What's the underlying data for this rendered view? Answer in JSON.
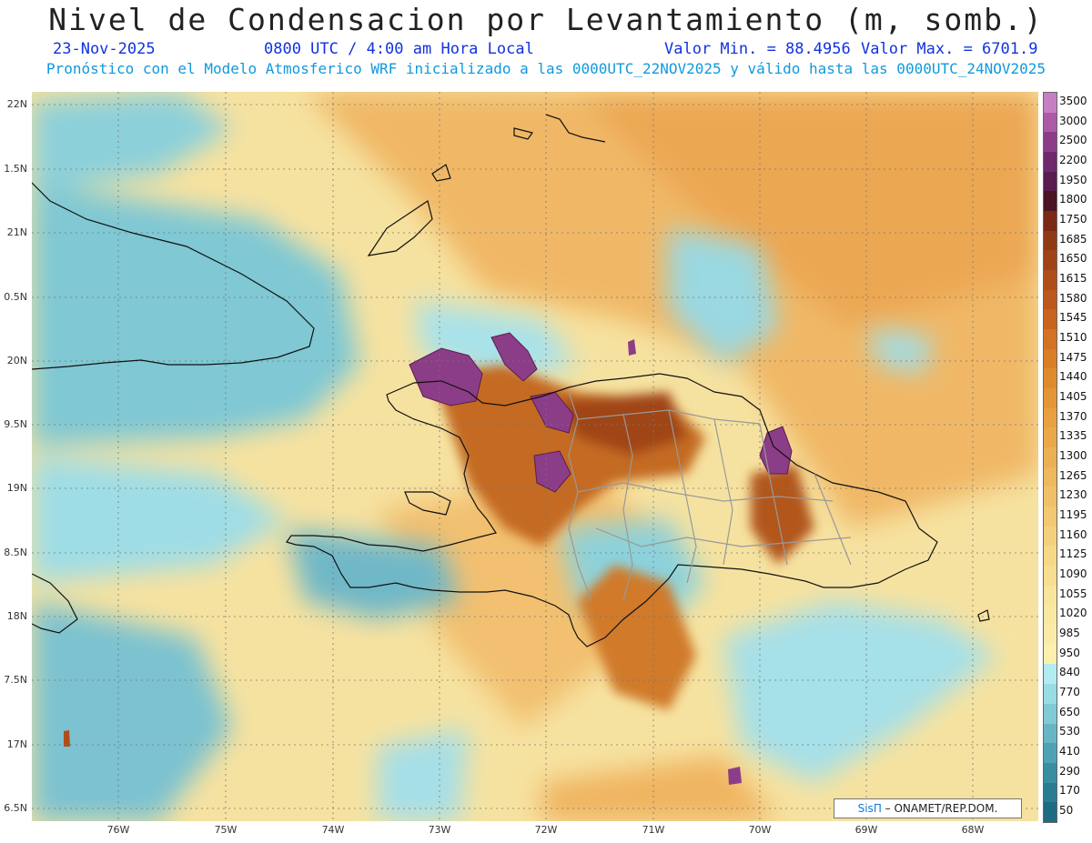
{
  "header": {
    "title": "Nivel de Condensacion por Levantamiento (m, somb.)",
    "date": "23-Nov-2025",
    "time": "0800 UTC / 4:00 am Hora Local",
    "min_value": "Valor Min. = 88.4956",
    "max_value": "Valor Max. = 6701.9",
    "model_info": "Pronóstico con el Modelo Atmosferico WRF inicializado a las 0000UTC_22NOV2025 y válido hasta las  0000UTC_24NOV2025"
  },
  "axes": {
    "lat_labels": [
      "22N",
      "1.5N",
      "21N",
      "0.5N",
      "20N",
      "9.5N",
      "19N",
      "8.5N",
      "18N",
      "7.5N",
      "17N",
      "6.5N"
    ],
    "lon_labels": [
      "76W",
      "75W",
      "74W",
      "73W",
      "72W",
      "71W",
      "70W",
      "69W",
      "68W"
    ]
  },
  "colorbar": {
    "labels": [
      "3500",
      "3000",
      "2500",
      "2200",
      "1950",
      "1800",
      "1750",
      "1685",
      "1650",
      "1615",
      "1580",
      "1545",
      "1510",
      "1475",
      "1440",
      "1405",
      "1370",
      "1335",
      "1300",
      "1265",
      "1230",
      "1195",
      "1160",
      "1125",
      "1090",
      "1055",
      "1020",
      "985",
      "950",
      "840",
      "770",
      "650",
      "530",
      "410",
      "290",
      "170",
      "50"
    ],
    "colors": [
      "#c77fc4",
      "#ad5aa6",
      "#8c3d87",
      "#6e2a6a",
      "#5a1d4f",
      "#4a1424",
      "#7a2a14",
      "#8f3a14",
      "#a04418",
      "#b04e1a",
      "#bc581c",
      "#c8641e",
      "#d27222",
      "#da7e26",
      "#e08a2e",
      "#e49636",
      "#e8a040",
      "#eaa84a",
      "#ecb054",
      "#eeb85e",
      "#f0c068",
      "#f2c872",
      "#f4d07c",
      "#f6d886",
      "#f7de90",
      "#f8e49a",
      "#f9e8a2",
      "#faeca8",
      "#fbf0ae",
      "#b2ecf0",
      "#98dce4",
      "#80cad6",
      "#66b6c6",
      "#4ea2b4",
      "#3a8ea2",
      "#2a7c92",
      "#1e6c84"
    ]
  },
  "credit": {
    "brand": "SisΠ",
    "text": "– ONAMET/REP.DOM."
  }
}
